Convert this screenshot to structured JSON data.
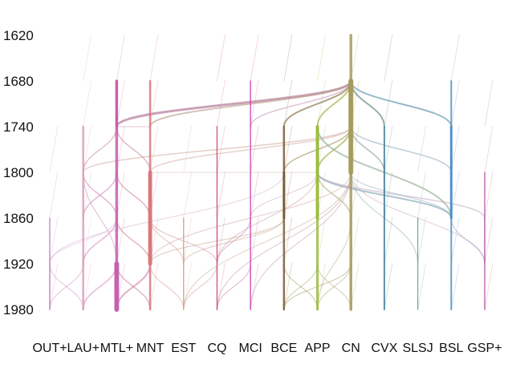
{
  "chart_data": {
    "type": "diagram",
    "title": "",
    "y_axis": {
      "ticks": [
        1620,
        1680,
        1740,
        1800,
        1860,
        1920,
        1980
      ],
      "range": [
        1620,
        1980
      ]
    },
    "columns": [
      {
        "id": "OUT",
        "label": "OUT+",
        "color": "#c47cc0"
      },
      {
        "id": "LAU",
        "label": "LAU+",
        "color": "#dd9cb4"
      },
      {
        "id": "MTL",
        "label": "MTL+",
        "color": "#c45eae"
      },
      {
        "id": "MNT",
        "label": "MNT",
        "color": "#d8757b"
      },
      {
        "id": "EST",
        "label": "EST",
        "color": "#cf9f86"
      },
      {
        "id": "CQ",
        "label": "CQ",
        "color": "#c74a73"
      },
      {
        "id": "MCI",
        "label": "MCI",
        "color": "#cf3fa8"
      },
      {
        "id": "BCE",
        "label": "BCE",
        "color": "#7a5a33"
      },
      {
        "id": "APP",
        "label": "APP",
        "color": "#9bbd3a"
      },
      {
        "id": "CN",
        "label": "CN",
        "color": "#a59c5c"
      },
      {
        "id": "CVX",
        "label": "CVX",
        "color": "#3f7f98"
      },
      {
        "id": "SLSJ",
        "label": "SLSJ",
        "color": "#5c9a86"
      },
      {
        "id": "BSL",
        "label": "BSL",
        "color": "#4f8fc8"
      },
      {
        "id": "GSP",
        "label": "GSP+",
        "color": "#b457a3"
      }
    ],
    "trunks": [
      {
        "col": "OUT",
        "from": 1860,
        "to": 1980,
        "w": 1.5
      },
      {
        "col": "LAU",
        "from": 1740,
        "to": 1980,
        "w": 2.5
      },
      {
        "col": "MTL",
        "from": 1680,
        "to": 1980,
        "w": 3.5
      },
      {
        "col": "MNT",
        "from": 1680,
        "to": 1980,
        "w": 2.5
      },
      {
        "col": "EST",
        "from": 1860,
        "to": 1980,
        "w": 1.5
      },
      {
        "col": "CQ",
        "from": 1740,
        "to": 1980,
        "w": 1.5
      },
      {
        "col": "MCI",
        "from": 1680,
        "to": 1980,
        "w": 1.5
      },
      {
        "col": "BCE",
        "from": 1740,
        "to": 1980,
        "w": 2.5
      },
      {
        "col": "APP",
        "from": 1740,
        "to": 1980,
        "w": 3
      },
      {
        "col": "CN",
        "from": 1620,
        "to": 1980,
        "w": 3.5
      },
      {
        "col": "CVX",
        "from": 1740,
        "to": 1980,
        "w": 2
      },
      {
        "col": "SLSJ",
        "from": 1860,
        "to": 1980,
        "w": 1.2
      },
      {
        "col": "BSL",
        "from": 1680,
        "to": 1980,
        "w": 2
      },
      {
        "col": "GSP",
        "from": 1800,
        "to": 1980,
        "w": 1.5
      }
    ],
    "thick_segments": [
      {
        "col": "MNT",
        "from": 1800,
        "to": 1920,
        "w": 5
      },
      {
        "col": "MTL",
        "from": 1920,
        "to": 1980,
        "w": 6
      },
      {
        "col": "BCE",
        "from": 1800,
        "to": 1860,
        "w": 3
      },
      {
        "col": "APP",
        "from": 1740,
        "to": 1860,
        "w": 4
      },
      {
        "col": "CN",
        "from": 1680,
        "to": 1800,
        "w": 6
      },
      {
        "col": "BSL",
        "from": 1740,
        "to": 1860,
        "w": 3
      }
    ],
    "flows": [
      {
        "from": "CN",
        "fy": 1680,
        "to": "MTL",
        "ty": 1740,
        "w": 3,
        "color": "#b47a98",
        "op": 0.7
      },
      {
        "from": "CN",
        "fy": 1680,
        "to": "MNT",
        "ty": 1740,
        "w": 2,
        "color": "#b69a86",
        "op": 0.6
      },
      {
        "from": "CN",
        "fy": 1680,
        "to": "MCI",
        "ty": 1740,
        "w": 1.5,
        "color": "#c08ab0",
        "op": 0.5
      },
      {
        "from": "CN",
        "fy": 1680,
        "to": "BCE",
        "ty": 1740,
        "w": 2,
        "color": "#8c7a4e",
        "op": 0.7
      },
      {
        "from": "CN",
        "fy": 1680,
        "to": "APP",
        "ty": 1740,
        "w": 2,
        "color": "#a5b24a",
        "op": 0.7
      },
      {
        "from": "CN",
        "fy": 1680,
        "to": "CVX",
        "ty": 1740,
        "w": 2,
        "color": "#6a8a7a",
        "op": 0.7
      },
      {
        "from": "CN",
        "fy": 1680,
        "to": "BSL",
        "ty": 1740,
        "w": 2,
        "color": "#6a9ab0",
        "op": 0.7
      },
      {
        "from": "CN",
        "fy": 1680,
        "to": "CN",
        "ty": 1740,
        "w": 5,
        "color": "#a59c5c",
        "op": 0.9
      },
      {
        "from": "CN",
        "fy": 1740,
        "to": "LAU",
        "ty": 1800,
        "w": 1.5,
        "color": "#d6b0a6",
        "op": 0.6
      },
      {
        "from": "CN",
        "fy": 1740,
        "to": "MNT",
        "ty": 1800,
        "w": 1.5,
        "color": "#d3a69a",
        "op": 0.5
      },
      {
        "from": "CN",
        "fy": 1740,
        "to": "BCE",
        "ty": 1800,
        "w": 1.5,
        "color": "#9c8a5a",
        "op": 0.6
      },
      {
        "from": "CN",
        "fy": 1740,
        "to": "APP",
        "ty": 1800,
        "w": 2,
        "color": "#a8b34f",
        "op": 0.7
      },
      {
        "from": "CN",
        "fy": 1740,
        "to": "CVX",
        "ty": 1800,
        "w": 1.5,
        "color": "#7a9a8a",
        "op": 0.6
      },
      {
        "from": "CN",
        "fy": 1740,
        "to": "BSL",
        "ty": 1800,
        "w": 1.5,
        "color": "#7aa0b4",
        "op": 0.5
      },
      {
        "from": "CN",
        "fy": 1740,
        "to": "CN",
        "ty": 1800,
        "w": 4,
        "color": "#a59c5c",
        "op": 0.9
      },
      {
        "from": "APP",
        "fy": 1740,
        "to": "BSL",
        "ty": 1860,
        "w": 2,
        "color": "#8aa88a",
        "op": 0.6
      },
      {
        "from": "APP",
        "fy": 1800,
        "to": "BSL",
        "ty": 1860,
        "w": 2,
        "color": "#7a9eae",
        "op": 0.6
      },
      {
        "from": "APP",
        "fy": 1800,
        "to": "GSP",
        "ty": 1860,
        "w": 1.5,
        "color": "#b89ab8",
        "op": 0.5
      },
      {
        "from": "APP",
        "fy": 1800,
        "to": "CN",
        "ty": 1860,
        "w": 1.5,
        "color": "#a8ae6e",
        "op": 0.6
      },
      {
        "from": "APP",
        "fy": 1800,
        "to": "MCI",
        "ty": 1860,
        "w": 1.2,
        "color": "#c8a8c0",
        "op": 0.5
      },
      {
        "from": "APP",
        "fy": 1800,
        "to": "CQ",
        "ty": 1920,
        "w": 1.2,
        "color": "#c8a0a8",
        "op": 0.5
      },
      {
        "from": "BCE",
        "fy": 1800,
        "to": "OUT",
        "ty": 1920,
        "w": 1.2,
        "color": "#d8b8d6",
        "op": 0.5
      },
      {
        "from": "BCE",
        "fy": 1860,
        "to": "EST",
        "ty": 1920,
        "w": 1.2,
        "color": "#c8a890",
        "op": 0.5
      },
      {
        "from": "CN",
        "fy": 1800,
        "to": "EST",
        "ty": 1980,
        "w": 1.2,
        "color": "#c8b098",
        "op": 0.5
      },
      {
        "from": "CN",
        "fy": 1800,
        "to": "MNT",
        "ty": 1920,
        "w": 1.2,
        "color": "#d2a8a0",
        "op": 0.5
      },
      {
        "from": "CN",
        "fy": 1800,
        "to": "CQ",
        "ty": 1980,
        "w": 1.2,
        "color": "#c8a0a0",
        "op": 0.5
      },
      {
        "from": "CN",
        "fy": 1800,
        "to": "MCI",
        "ty": 1980,
        "w": 1.2,
        "color": "#c8a0b8",
        "op": 0.5
      },
      {
        "from": "CN",
        "fy": 1800,
        "to": "GSP",
        "ty": 1920,
        "w": 1.2,
        "color": "#c8a8c8",
        "op": 0.5
      },
      {
        "from": "CN",
        "fy": 1800,
        "to": "BSL",
        "ty": 1860,
        "w": 1.2,
        "color": "#8aaec0",
        "op": 0.5
      },
      {
        "from": "CN",
        "fy": 1800,
        "to": "SLSJ",
        "ty": 1920,
        "w": 1.2,
        "color": "#8ab0a0",
        "op": 0.5
      },
      {
        "from": "CN",
        "fy": 1860,
        "to": "CN",
        "ty": 1980,
        "w": 1.5,
        "color": "#b8b088",
        "op": 0.6
      },
      {
        "from": "CN",
        "fy": 1860,
        "to": "APP",
        "ty": 1980,
        "w": 1.2,
        "color": "#b8c078",
        "op": 0.5
      },
      {
        "from": "CVX",
        "fy": 1800,
        "to": "CVX",
        "ty": 1860,
        "w": 1.2,
        "color": "#6a9aa8",
        "op": 0.5
      },
      {
        "from": "MTL",
        "fy": 1740,
        "to": "MNT",
        "ty": 1740,
        "w": 1.2,
        "color": "#c888a8",
        "op": 0.4
      },
      {
        "from": "MTL",
        "fy": 1740,
        "to": "LAU",
        "ty": 1800,
        "w": 1.5,
        "color": "#d098b8",
        "op": 0.6
      },
      {
        "from": "MTL",
        "fy": 1740,
        "to": "MNT",
        "ty": 1800,
        "w": 1.5,
        "color": "#d090a0",
        "op": 0.6
      },
      {
        "from": "MTL",
        "fy": 1680,
        "to": "MTL",
        "ty": 1740,
        "w": 3,
        "color": "#c45eae",
        "op": 0.8
      },
      {
        "from": "LAU",
        "fy": 1800,
        "to": "MTL",
        "ty": 1860,
        "w": 1.5,
        "color": "#d28cbc",
        "op": 0.6
      },
      {
        "from": "LAU",
        "fy": 1800,
        "to": "MTL",
        "ty": 1920,
        "w": 1.2,
        "color": "#d28cbc",
        "op": 0.5
      },
      {
        "from": "MTL",
        "fy": 1800,
        "to": "LAU",
        "ty": 1860,
        "w": 1.5,
        "color": "#d28cbc",
        "op": 0.6
      },
      {
        "from": "MTL",
        "fy": 1800,
        "to": "MNT",
        "ty": 1860,
        "w": 1.5,
        "color": "#d08898",
        "op": 0.6
      },
      {
        "from": "MTL",
        "fy": 1860,
        "to": "LAU",
        "ty": 1920,
        "w": 1.5,
        "color": "#d28cbc",
        "op": 0.6
      },
      {
        "from": "MTL",
        "fy": 1860,
        "to": "MNT",
        "ty": 1920,
        "w": 1.5,
        "color": "#d08898",
        "op": 0.6
      },
      {
        "from": "MTL",
        "fy": 1920,
        "to": "LAU",
        "ty": 1980,
        "w": 1.5,
        "color": "#d28cbc",
        "op": 0.6
      },
      {
        "from": "MTL",
        "fy": 1920,
        "to": "MNT",
        "ty": 1980,
        "w": 1.5,
        "color": "#d08898",
        "op": 0.6
      },
      {
        "from": "MTL",
        "fy": 1860,
        "to": "OUT",
        "ty": 1920,
        "w": 1.2,
        "color": "#d0a0cc",
        "op": 0.4
      },
      {
        "from": "MNT",
        "fy": 1860,
        "to": "EST",
        "ty": 1920,
        "w": 1.2,
        "color": "#d89c8c",
        "op": 0.5
      },
      {
        "from": "MNT",
        "fy": 1860,
        "to": "CQ",
        "ty": 1920,
        "w": 1.2,
        "color": "#d0889a",
        "op": 0.5
      },
      {
        "from": "MNT",
        "fy": 1920,
        "to": "MTL",
        "ty": 1980,
        "w": 2,
        "color": "#cc78a8",
        "op": 0.6
      },
      {
        "from": "MNT",
        "fy": 1920,
        "to": "EST",
        "ty": 1980,
        "w": 1.2,
        "color": "#d8a090",
        "op": 0.5
      },
      {
        "from": "OUT",
        "fy": 1920,
        "to": "OUT",
        "ty": 1980,
        "w": 1.2,
        "color": "#c47cc0",
        "op": 0.5
      },
      {
        "from": "OUT",
        "fy": 1920,
        "to": "LAU",
        "ty": 1980,
        "w": 1.2,
        "color": "#d098c8",
        "op": 0.5
      },
      {
        "from": "LAU",
        "fy": 1920,
        "to": "OUT",
        "ty": 1980,
        "w": 1.2,
        "color": "#d098c8",
        "op": 0.5
      },
      {
        "from": "MCI",
        "fy": 1860,
        "to": "CQ",
        "ty": 1920,
        "w": 1.2,
        "color": "#d07ab0",
        "op": 0.5
      },
      {
        "from": "MCI",
        "fy": 1920,
        "to": "CQ",
        "ty": 1980,
        "w": 1.2,
        "color": "#d07ab0",
        "op": 0.5
      },
      {
        "from": "CQ",
        "fy": 1920,
        "to": "EST",
        "ty": 1980,
        "w": 1.2,
        "color": "#d0a0a0",
        "op": 0.5
      },
      {
        "from": "BCE",
        "fy": 1920,
        "to": "APP",
        "ty": 1980,
        "w": 1.2,
        "color": "#a8a070",
        "op": 0.5
      },
      {
        "from": "APP",
        "fy": 1920,
        "to": "BCE",
        "ty": 1980,
        "w": 1.2,
        "color": "#a8b070",
        "op": 0.5
      },
      {
        "from": "APP",
        "fy": 1920,
        "to": "CN",
        "ty": 1980,
        "w": 1.2,
        "color": "#b0b078",
        "op": 0.5
      },
      {
        "from": "CN",
        "fy": 1920,
        "to": "APP",
        "ty": 1980,
        "w": 1.2,
        "color": "#b0b078",
        "op": 0.5
      },
      {
        "from": "CN",
        "fy": 1920,
        "to": "BCE",
        "ty": 1980,
        "w": 1.2,
        "color": "#a89c70",
        "op": 0.5
      },
      {
        "from": "BSL",
        "fy": 1860,
        "to": "GSP",
        "ty": 1920,
        "w": 1.2,
        "color": "#9a9ac8",
        "op": 0.5
      },
      {
        "from": "GSP",
        "fy": 1860,
        "to": "GSP",
        "ty": 1920,
        "w": 1.2,
        "color": "#b457a3",
        "op": 0.5
      },
      {
        "from": "BCE",
        "fy": 1860,
        "to": "MNT",
        "ty": 1920,
        "w": 1.2,
        "color": "#c8a890",
        "op": 0.5
      },
      {
        "from": "APP",
        "fy": 1800,
        "to": "MNT",
        "ty": 1800,
        "w": 1.2,
        "color": "#d6bcb0",
        "op": 0.4
      }
    ]
  }
}
